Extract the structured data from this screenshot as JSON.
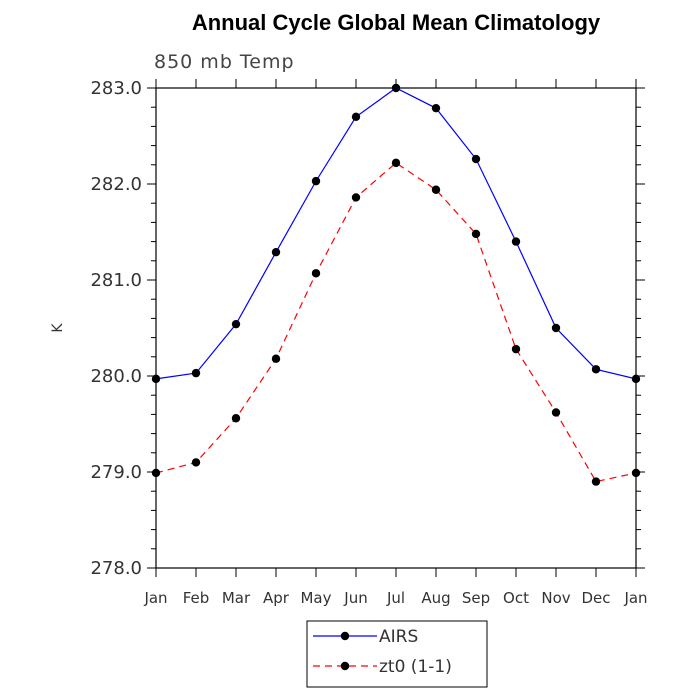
{
  "chart_data": {
    "type": "line",
    "title": "Annual Cycle Global Mean Climatology",
    "subtitle": "850 mb Temp",
    "ylabel": "K",
    "xlabel": "",
    "categories": [
      "Jan",
      "Feb",
      "Mar",
      "Apr",
      "May",
      "Jun",
      "Jul",
      "Aug",
      "Sep",
      "Oct",
      "Nov",
      "Dec",
      "Jan"
    ],
    "ylim": [
      278.0,
      283.0
    ],
    "yticks": [
      278.0,
      279.0,
      280.0,
      281.0,
      282.0,
      283.0
    ],
    "ytick_labels": [
      "278.0",
      "279.0",
      "280.0",
      "281.0",
      "282.0",
      "283.0"
    ],
    "series": [
      {
        "name": "AIRS",
        "color": "#0000ff",
        "dash": "solid",
        "values": [
          279.97,
          280.03,
          280.54,
          281.29,
          282.03,
          282.7,
          283.0,
          282.79,
          282.26,
          281.4,
          280.5,
          280.07,
          279.97
        ]
      },
      {
        "name": "zt0 (1-1)",
        "color": "#ff0000",
        "dash": "dashed",
        "values": [
          278.99,
          279.1,
          279.56,
          280.18,
          281.07,
          281.86,
          282.22,
          281.94,
          281.48,
          280.28,
          279.62,
          278.9,
          278.99
        ]
      }
    ],
    "legend_position": "bottom-center",
    "grid": false
  }
}
